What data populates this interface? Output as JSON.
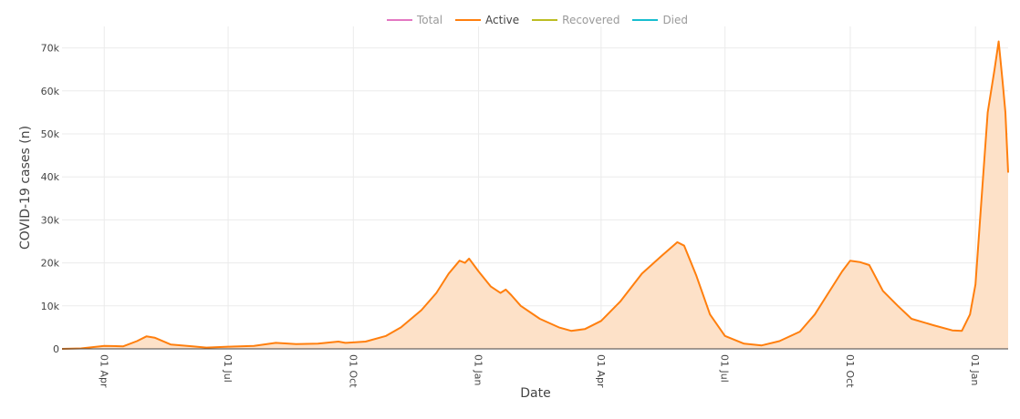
{
  "legend": [
    {
      "label": "Total",
      "color": "#e377c2",
      "visible": false
    },
    {
      "label": "Active",
      "color": "#ff7f0e",
      "visible": true
    },
    {
      "label": "Recovered",
      "color": "#bcbd22",
      "visible": false
    },
    {
      "label": "Died",
      "color": "#17becf",
      "visible": false
    }
  ],
  "chart_data": {
    "type": "area",
    "xlabel": "Date",
    "ylabel": "COVID-19 cases (n)",
    "x_ticks": [
      "01 Apr",
      "01 Jul",
      "01 Oct",
      "01 Jan",
      "01 Apr",
      "01 Jul",
      "01 Oct",
      "01 Jan"
    ],
    "x_tick_dates": [
      "2020-04-01",
      "2020-07-01",
      "2020-10-01",
      "2021-01-01",
      "2021-04-01",
      "2021-07-01",
      "2021-10-01",
      "2022-01-01"
    ],
    "y_ticks": [
      "0",
      "10k",
      "20k",
      "30k",
      "40k",
      "50k",
      "60k",
      "70k"
    ],
    "ylim": [
      0,
      75000
    ],
    "xlim": [
      "2020-03-01",
      "2022-01-25"
    ],
    "grid": true,
    "legend_position": "top-center",
    "series": [
      {
        "name": "Active",
        "color": "#ff7f0e",
        "fill": "#fde1c8",
        "points": [
          [
            "2020-03-01",
            0
          ],
          [
            "2020-03-15",
            100
          ],
          [
            "2020-04-01",
            700
          ],
          [
            "2020-04-15",
            600
          ],
          [
            "2020-04-25",
            1800
          ],
          [
            "2020-05-02",
            2900
          ],
          [
            "2020-05-08",
            2600
          ],
          [
            "2020-05-20",
            1000
          ],
          [
            "2020-06-05",
            600
          ],
          [
            "2020-06-15",
            300
          ],
          [
            "2020-07-01",
            500
          ],
          [
            "2020-07-20",
            700
          ],
          [
            "2020-08-05",
            1400
          ],
          [
            "2020-08-20",
            1100
          ],
          [
            "2020-09-05",
            1200
          ],
          [
            "2020-09-20",
            1700
          ],
          [
            "2020-09-25",
            1400
          ],
          [
            "2020-10-01",
            1500
          ],
          [
            "2020-10-10",
            1700
          ],
          [
            "2020-10-25",
            3000
          ],
          [
            "2020-11-05",
            5000
          ],
          [
            "2020-11-20",
            9000
          ],
          [
            "2020-12-01",
            13000
          ],
          [
            "2020-12-10",
            17500
          ],
          [
            "2020-12-18",
            20500
          ],
          [
            "2020-12-22",
            20000
          ],
          [
            "2020-12-25",
            21000
          ],
          [
            "2021-01-01",
            18000
          ],
          [
            "2021-01-10",
            14500
          ],
          [
            "2021-01-17",
            13000
          ],
          [
            "2021-01-21",
            13800
          ],
          [
            "2021-01-25",
            12500
          ],
          [
            "2021-02-01",
            10000
          ],
          [
            "2021-02-15",
            7000
          ],
          [
            "2021-03-01",
            5000
          ],
          [
            "2021-03-10",
            4200
          ],
          [
            "2021-03-20",
            4600
          ],
          [
            "2021-04-01",
            6500
          ],
          [
            "2021-04-15",
            11000
          ],
          [
            "2021-05-01",
            17500
          ],
          [
            "2021-05-15",
            21500
          ],
          [
            "2021-05-27",
            24800
          ],
          [
            "2021-06-01",
            24000
          ],
          [
            "2021-06-10",
            17000
          ],
          [
            "2021-06-20",
            8000
          ],
          [
            "2021-07-01",
            3000
          ],
          [
            "2021-07-15",
            1200
          ],
          [
            "2021-07-28",
            800
          ],
          [
            "2021-08-10",
            1800
          ],
          [
            "2021-08-25",
            4000
          ],
          [
            "2021-09-05",
            8000
          ],
          [
            "2021-09-15",
            13000
          ],
          [
            "2021-09-25",
            18000
          ],
          [
            "2021-10-01",
            20500
          ],
          [
            "2021-10-08",
            20200
          ],
          [
            "2021-10-15",
            19500
          ],
          [
            "2021-10-25",
            13500
          ],
          [
            "2021-11-05",
            10000
          ],
          [
            "2021-11-15",
            7000
          ],
          [
            "2021-12-01",
            5500
          ],
          [
            "2021-12-15",
            4300
          ],
          [
            "2021-12-22",
            4200
          ],
          [
            "2021-12-28",
            8000
          ],
          [
            "2022-01-01",
            15000
          ],
          [
            "2022-01-05",
            33000
          ],
          [
            "2022-01-10",
            55000
          ],
          [
            "2022-01-15",
            65000
          ],
          [
            "2022-01-18",
            71500
          ],
          [
            "2022-01-21",
            62000
          ],
          [
            "2022-01-23",
            55000
          ],
          [
            "2022-01-25",
            41000
          ]
        ]
      }
    ]
  }
}
